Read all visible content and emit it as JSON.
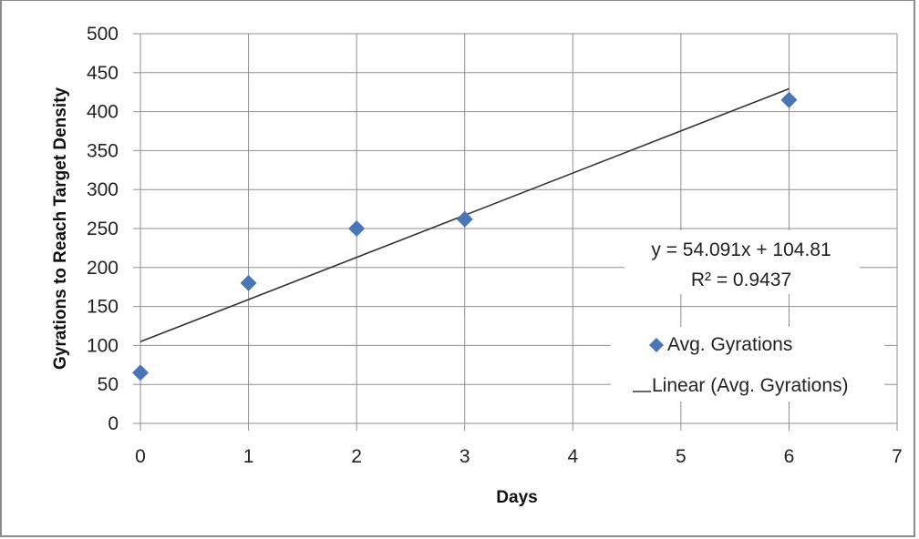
{
  "chart_data": {
    "type": "scatter",
    "xlabel": "Days",
    "ylabel": "Gyrations to Reach Target Density",
    "xlim": [
      0,
      7
    ],
    "ylim": [
      0,
      500
    ],
    "x_ticks": [
      "0",
      "1",
      "2",
      "3",
      "4",
      "5",
      "6",
      "7"
    ],
    "y_ticks": [
      "0",
      "50",
      "100",
      "150",
      "200",
      "250",
      "300",
      "350",
      "400",
      "450",
      "500"
    ],
    "grid": true,
    "legend_position": "right",
    "series": [
      {
        "name": "Avg. Gyrations",
        "type": "scatter",
        "marker": "diamond",
        "color": "#4a76b8",
        "x": [
          0,
          1,
          2,
          3,
          6
        ],
        "y": [
          65,
          180,
          250,
          262,
          415
        ]
      },
      {
        "name": "Linear (Avg. Gyrations)",
        "type": "line",
        "color": "#333333",
        "slope": 54.091,
        "intercept": 104.81,
        "x": [
          0,
          6
        ]
      }
    ],
    "trendline_equation": "y = 54.091x + 104.81",
    "trendline_r2": "R² = 0.9437"
  }
}
